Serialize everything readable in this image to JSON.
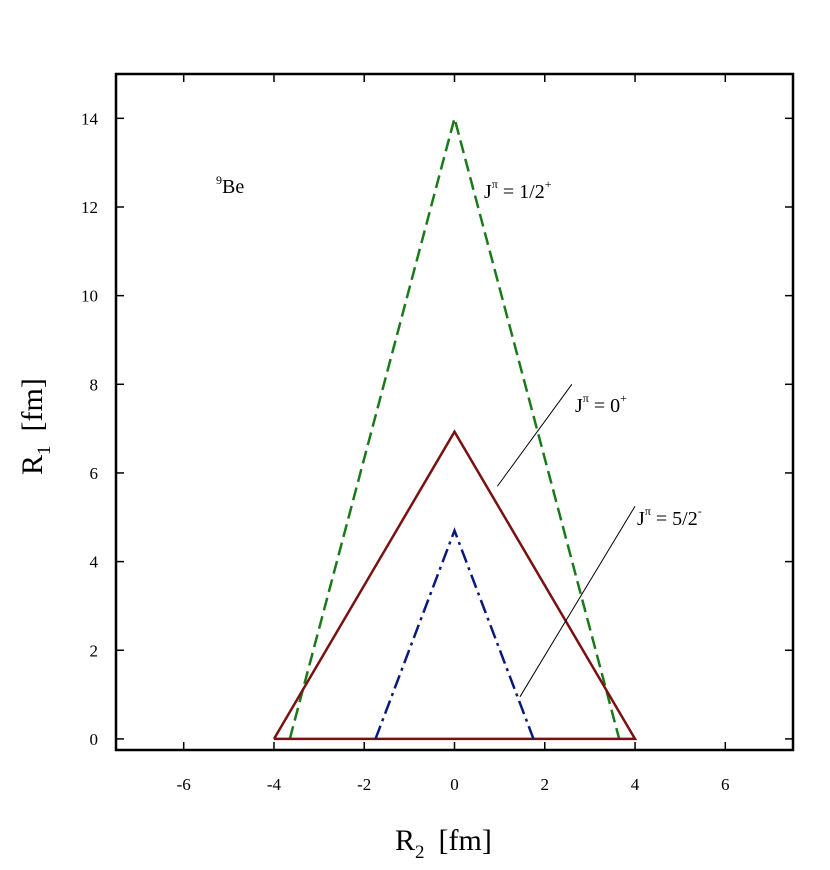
{
  "chart_data": {
    "type": "line",
    "xlabel": "R",
    "xlabel_sub": "2",
    "xlabel_unit": "[fm]",
    "ylabel": "R",
    "ylabel_sub": "1",
    "ylabel_unit": "[fm]",
    "xlim": [
      -7.5,
      7.5
    ],
    "ylim": [
      -0.25,
      15
    ],
    "xticks": [
      -6,
      -4,
      -2,
      0,
      2,
      4,
      6
    ],
    "xtick_labels": [
      "-6",
      "-4",
      "-2",
      "0",
      "2",
      "4",
      "6"
    ],
    "yticks": [
      0,
      2,
      4,
      6,
      8,
      10,
      12,
      14
    ],
    "ytick_labels": [
      "0",
      "2",
      "4",
      "6",
      "8",
      "10",
      "12",
      "14"
    ],
    "grid": false,
    "nucleus_label": {
      "sup": "9",
      "text": "Be"
    },
    "series": [
      {
        "name": "Jπ = 1/2+",
        "color": "#1a7a1a",
        "style": "dashed",
        "x": [
          -3.65,
          0,
          3.65
        ],
        "y": [
          0,
          14,
          0
        ]
      },
      {
        "name": "Jπ = 0+",
        "color": "#7a1010",
        "style": "solid",
        "x": [
          -4.0,
          0,
          4.0,
          -4.0
        ],
        "y": [
          0,
          6.93,
          0,
          0
        ]
      },
      {
        "name": "Jπ = 5/2-",
        "color": "#0a1a7a",
        "style": "dashdot",
        "x": [
          -1.75,
          0,
          1.75
        ],
        "y": [
          0,
          4.7,
          0
        ]
      }
    ],
    "annotations": [
      {
        "base": "J",
        "sup1": "π",
        "mid": " = 1/2",
        "sup2": "+"
      },
      {
        "base": "J",
        "sup1": "π",
        "mid": " = 0",
        "sup2": "+"
      },
      {
        "base": "J",
        "sup1": "π",
        "mid": " = 5/2",
        "sup2": "-"
      }
    ]
  }
}
